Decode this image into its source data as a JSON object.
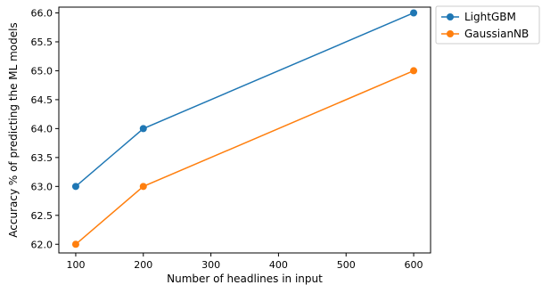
{
  "chart_data": {
    "type": "line",
    "title": "",
    "xlabel": "Number of headlines in input",
    "ylabel": "Accuracy % of predicting the ML models",
    "x": [
      100,
      200,
      600
    ],
    "series": [
      {
        "name": "LightGBM",
        "values": [
          63.0,
          64.0,
          66.0
        ],
        "color": "#1f77b4"
      },
      {
        "name": "GaussianNB",
        "values": [
          62.0,
          63.0,
          65.0
        ],
        "color": "#ff7f0e"
      }
    ],
    "xlim": [
      75,
      625
    ],
    "ylim": [
      61.85,
      66.1
    ],
    "xticks": [
      100,
      200,
      300,
      400,
      500,
      600
    ],
    "xtick_labels": [
      "100",
      "200",
      "300",
      "400",
      "500",
      "600"
    ],
    "yticks": [
      62.0,
      62.5,
      63.0,
      63.5,
      64.0,
      64.5,
      65.0,
      65.5,
      66.0
    ],
    "ytick_labels": [
      "62.0",
      "62.5",
      "63.0",
      "63.5",
      "64.0",
      "64.5",
      "65.0",
      "65.5",
      "66.0"
    ],
    "grid": false,
    "legend_position": "outside-upper-right"
  }
}
